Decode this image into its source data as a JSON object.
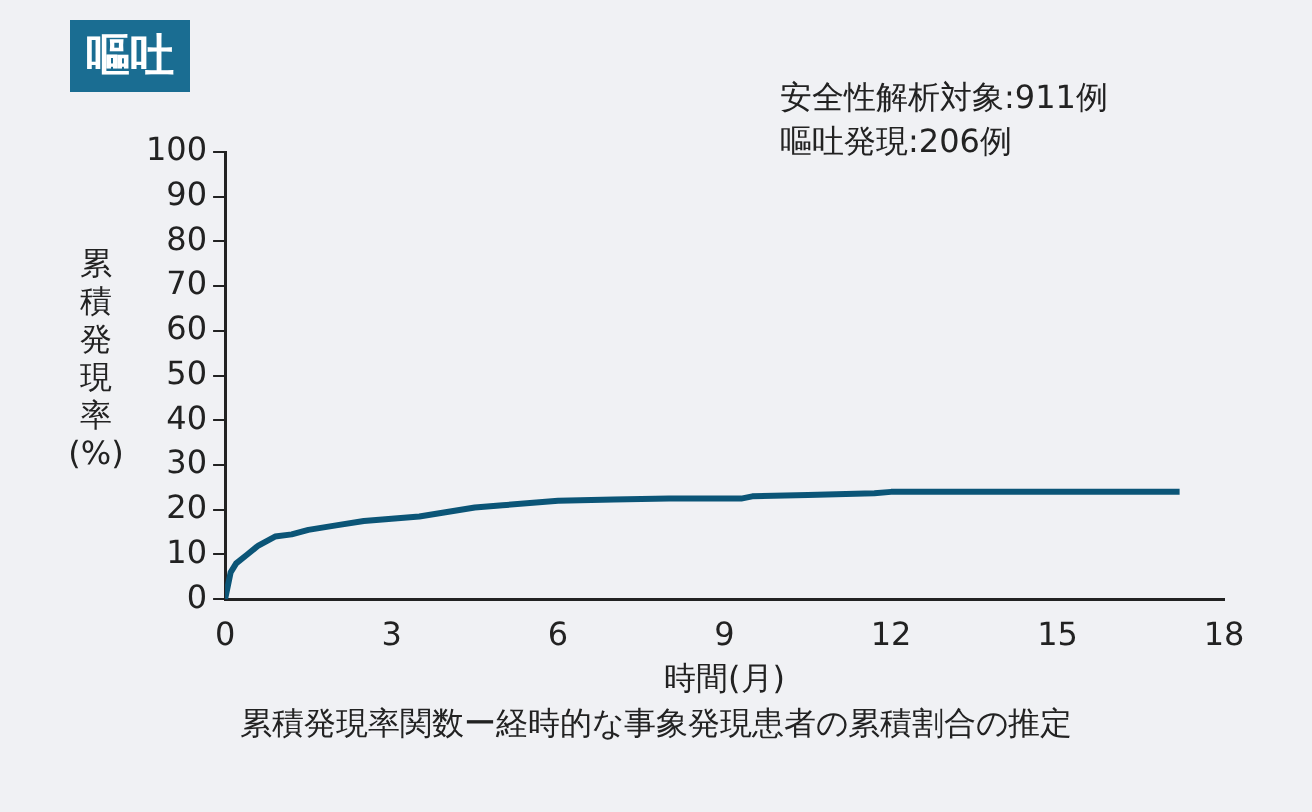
{
  "chart_data": {
    "type": "line",
    "title": "嘔吐",
    "xlabel": "時間(月)",
    "ylabel": "累積発現率(%)",
    "annotations": [
      "安全性解析対象:911例",
      "嘔吐発現:206例",
      "累積発現率関数ー経時的な事象発現患者の累積割合の推定"
    ],
    "series": [
      {
        "color": "#0b5577",
        "x": [
          0,
          0.05,
          0.1,
          0.2,
          0.4,
          0.6,
          0.9,
          1.2,
          1.5,
          2,
          2.5,
          3,
          3.5,
          4,
          4.5,
          5,
          6,
          7,
          8,
          9.3,
          9.5,
          10.5,
          11.7,
          12,
          15,
          17.2
        ],
        "values": [
          0,
          3,
          6,
          8,
          10,
          12,
          14,
          14.5,
          15.5,
          16.5,
          17.5,
          18,
          18.5,
          19.5,
          20.5,
          21,
          22,
          22.3,
          22.5,
          22.5,
          23,
          23.3,
          23.7,
          24,
          24,
          24
        ]
      }
    ],
    "xlim": [
      0,
      18
    ],
    "xticks": [
      0,
      3,
      6,
      9,
      12,
      15,
      18
    ],
    "ylim": [
      0,
      100
    ],
    "yticks": [
      0,
      10,
      20,
      30,
      40,
      50,
      60,
      70,
      80,
      90,
      100
    ],
    "grid": false,
    "legend": false,
    "marker": "none",
    "line_style": "solid"
  }
}
